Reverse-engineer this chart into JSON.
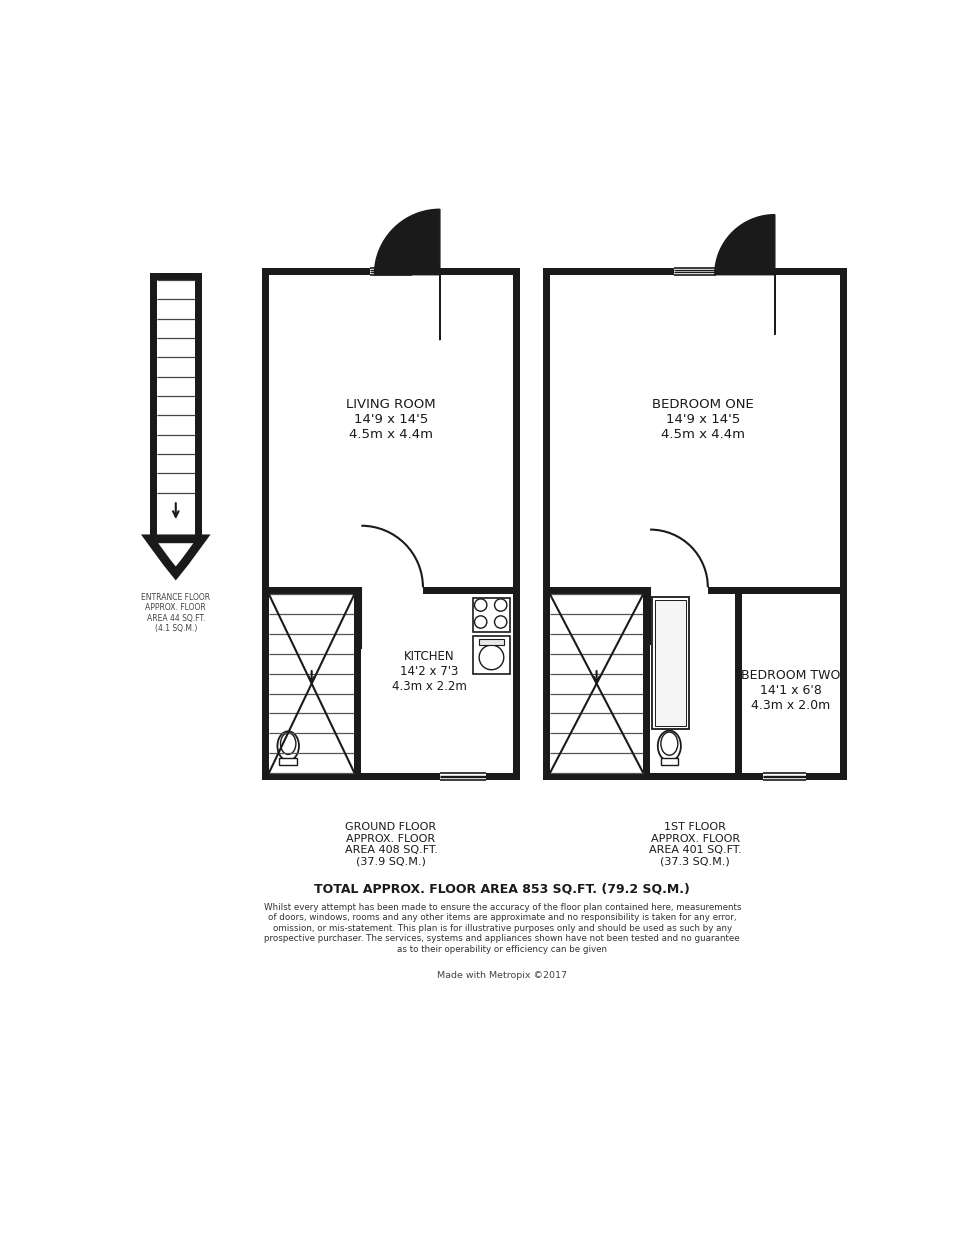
{
  "bg_color": "#ffffff",
  "wc": "#1a1a1a",
  "ground_floor_label": "GROUND FLOOR\nAPPROX. FLOOR\nAREA 408 SQ.FT.\n(37.9 SQ.M.)",
  "first_floor_label": "1ST FLOOR\nAPPROX. FLOOR\nAREA 401 SQ.FT.\n(37.3 SQ.M.)",
  "total_label": "TOTAL APPROX. FLOOR AREA 853 SQ.FT. (79.2 SQ.M.)",
  "disclaimer": "Whilst every attempt has been made to ensure the accuracy of the floor plan contained here, measurements\nof doors, windows, rooms and any other items are approximate and no responsibility is taken for any error,\nomission, or mis-statement. This plan is for illustrative purposes only and should be used as such by any\nprospective purchaser. The services, systems and appliances shown have not been tested and no guarantee\nas to their operability or efficiency can be given",
  "credit": "Made with Metropix ©2017",
  "entrance_label": "ENTRANCE FLOOR\nAPPROX. FLOOR\nAREA 44 SQ.FT.\n(4.1 SQ.M.)",
  "living_room_label": "LIVING ROOM\n14'9 x 14'5\n4.5m x 4.4m",
  "kitchen_label": "KITCHEN\n14'2 x 7'3\n4.3m x 2.2m",
  "bedroom1_label": "BEDROOM ONE\n14'9 x 14'5\n4.5m x 4.4m",
  "bedroom2_label": "BEDROOM TWO\n14'1 x 6'8\n4.3m x 2.0m"
}
